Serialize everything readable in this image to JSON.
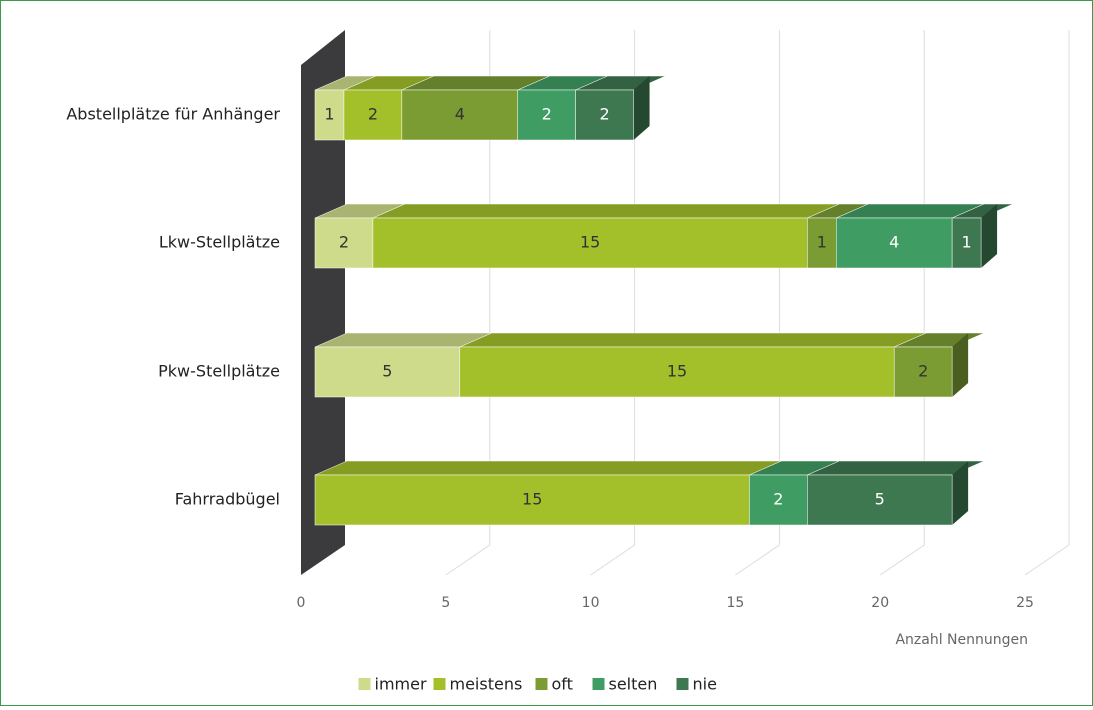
{
  "chart_data": {
    "type": "bar3d_stacked_horizontal",
    "categories": [
      "Abstellplätze für Anhänger",
      "Lkw-Stellplätze",
      "Pkw-Stellplätze",
      "Fahrradbügel"
    ],
    "series": [
      {
        "name": "immer",
        "color": "#cedb8a",
        "values": [
          1,
          2,
          5,
          null
        ]
      },
      {
        "name": "meistens",
        "color": "#a3c02b",
        "values": [
          2,
          15,
          15,
          15
        ]
      },
      {
        "name": "oft",
        "color": "#7a9c33",
        "values": [
          4,
          1,
          2,
          null
        ]
      },
      {
        "name": "selten",
        "color": "#3f9c62",
        "values": [
          2,
          4,
          null,
          2
        ]
      },
      {
        "name": "nie",
        "color": "#3e7850",
        "values": [
          2,
          1,
          null,
          5
        ]
      }
    ],
    "xlim": [
      0,
      25
    ],
    "xticks": [
      0,
      5,
      10,
      15,
      20,
      25
    ],
    "x_label": "Anzahl Nennungen",
    "grid": true
  }
}
